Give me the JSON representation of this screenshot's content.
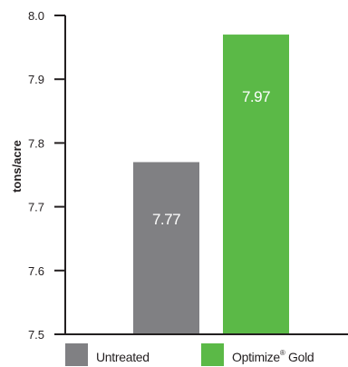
{
  "chart_data": {
    "type": "bar",
    "categories": [
      "Untreated",
      "Optimize Gold"
    ],
    "values": [
      7.77,
      7.97
    ],
    "data_labels": [
      "7.77",
      "7.97"
    ],
    "ylabel": "tons/acre",
    "ylim": [
      7.5,
      8.0
    ],
    "yticks": [
      7.5,
      7.6,
      7.7,
      7.8,
      7.9,
      8.0
    ],
    "ytick_labels": [
      "7.5",
      "7.6",
      "7.7",
      "7.8",
      "7.9",
      "8.0"
    ],
    "grid": false,
    "legend_placement": "bottom",
    "legend": [
      {
        "label": "Untreated",
        "sup": "",
        "color": "#808083"
      },
      {
        "label": "Optimize",
        "sup": "®",
        "suffix": " Gold",
        "color": "#5bb947"
      }
    ],
    "colors": [
      "#808083",
      "#5bb947"
    ],
    "axis_color": "#231f20"
  }
}
